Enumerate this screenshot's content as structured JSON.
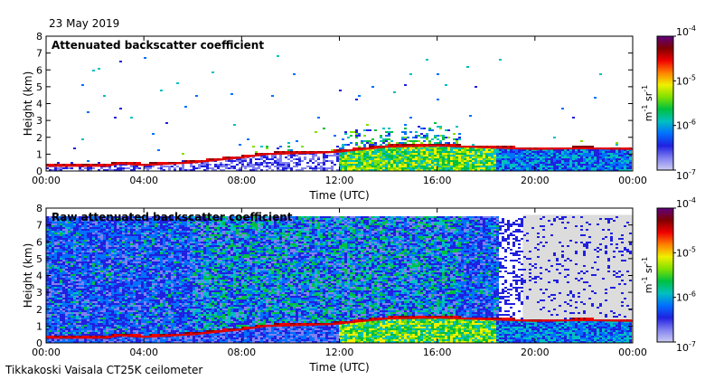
{
  "date": "23 May 2019",
  "footer": "Tikkakoski Vaisala CT25K ceilometer",
  "colors": {
    "colormap": [
      "#ccccf2",
      "#8080f0",
      "#2020e0",
      "#0070ff",
      "#00c0c0",
      "#00c040",
      "#80e000",
      "#f0f000",
      "#ff8000",
      "#f00000",
      "#800000",
      "#600080"
    ],
    "missing_gray": "#dcdcdc"
  },
  "chart_data": [
    {
      "type": "heatmap",
      "title": "Attenuated backscatter coefficient",
      "xlabel": "Time (UTC)",
      "ylabel": "Height (km)",
      "x_ticks": [
        "00:00",
        "04:00",
        "08:00",
        "12:00",
        "16:00",
        "20:00",
        "00:00"
      ],
      "xlim_hours": [
        0,
        24
      ],
      "y_ticks": [
        "0",
        "1",
        "2",
        "3",
        "4",
        "5",
        "6",
        "7",
        "8"
      ],
      "ylim_km": [
        0,
        8
      ],
      "colorbar": {
        "unit_base": "m",
        "unit_exp1": "-1",
        "unit_mid": " sr",
        "unit_exp2": "-1",
        "scale": "log",
        "tick_base": "10",
        "tick_exps": [
          "-4",
          "-5",
          "-6",
          "-7"
        ]
      },
      "cloud_base_km": [
        [
          0,
          0.3
        ],
        [
          2.5,
          0.3
        ],
        [
          3,
          0.45
        ],
        [
          4,
          0.35
        ],
        [
          6,
          0.5
        ],
        [
          8,
          0.8
        ],
        [
          9,
          1.0
        ],
        [
          11.5,
          1.1
        ],
        [
          12,
          1.15
        ],
        [
          13,
          1.3
        ],
        [
          14,
          1.45
        ],
        [
          16,
          1.5
        ],
        [
          18,
          1.4
        ],
        [
          20,
          1.3
        ],
        [
          22,
          1.35
        ],
        [
          24,
          1.3
        ]
      ]
    },
    {
      "type": "heatmap",
      "title": "Raw attenuated backscatter coefficient",
      "xlabel": "Time (UTC)",
      "ylabel": "Height (km)",
      "x_ticks": [
        "00:00",
        "04:00",
        "08:00",
        "12:00",
        "16:00",
        "20:00",
        "00:00"
      ],
      "xlim_hours": [
        0,
        24
      ],
      "y_ticks": [
        "0",
        "1",
        "2",
        "3",
        "4",
        "5",
        "6",
        "7",
        "8"
      ],
      "ylim_km": [
        0,
        8
      ],
      "colorbar": {
        "unit_base": "m",
        "unit_exp1": "-1",
        "unit_mid": " sr",
        "unit_exp2": "-1",
        "scale": "log",
        "tick_base": "10",
        "tick_exps": [
          "-4",
          "-5",
          "-6",
          "-7"
        ]
      },
      "cloud_base_km": [
        [
          0,
          0.3
        ],
        [
          2.5,
          0.3
        ],
        [
          3,
          0.45
        ],
        [
          4,
          0.35
        ],
        [
          6,
          0.5
        ],
        [
          8,
          0.8
        ],
        [
          9,
          1.0
        ],
        [
          11.5,
          1.1
        ],
        [
          12,
          1.15
        ],
        [
          13,
          1.3
        ],
        [
          14,
          1.45
        ],
        [
          16,
          1.5
        ],
        [
          18,
          1.4
        ],
        [
          20,
          1.3
        ],
        [
          22,
          1.35
        ],
        [
          24,
          1.3
        ]
      ]
    }
  ]
}
